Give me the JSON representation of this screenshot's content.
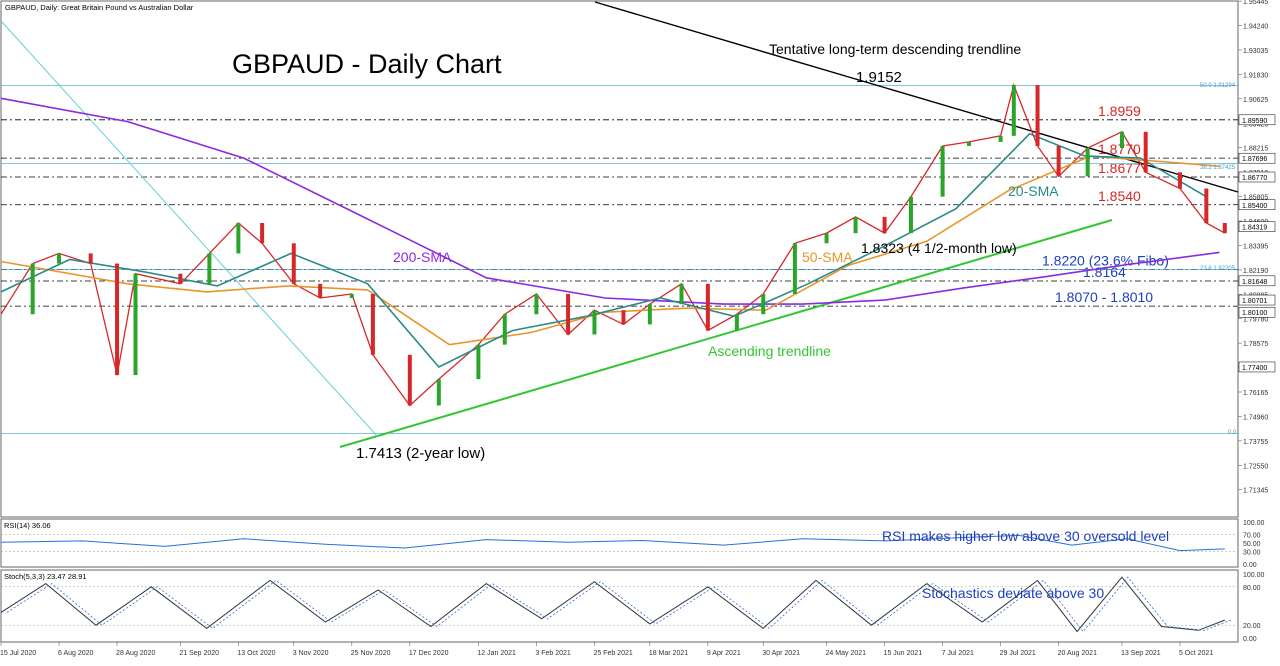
{
  "header": {
    "symbol_caption": "GBPAUD, Daily:  Great Britain Pound vs Australian Dollar",
    "title": "GBPAUD - Daily Chart"
  },
  "annotations": {
    "trendline_desc": "Tentative long-term descending trendline",
    "high": "1.9152",
    "low_2y": "1.7413 (2-year low)",
    "low_4m": "1.8323 (4 1/2-month low)",
    "sma200": "200-SMA",
    "sma50": "50-SMA",
    "sma20": "20-SMA",
    "ascending": "Ascending trendline",
    "rsi_note": "RSI makes higher low above 30 oversold level",
    "stoch_note": "Stochastics deviate above 30"
  },
  "levels": [
    {
      "value": 1.8959,
      "label": "1.8959",
      "color": "#d62828"
    },
    {
      "value": 1.877,
      "label": "1.8770",
      "color": "#d62828"
    },
    {
      "value": 1.8677,
      "label": "1.8677",
      "color": "#d62828"
    },
    {
      "value": 1.854,
      "label": "1.8540",
      "color": "#d62828"
    },
    {
      "value": 1.822,
      "label": "1.8220 (23.6% Fibo)",
      "color": "#1f3fbf"
    },
    {
      "value": 1.8164,
      "label": "1.8164",
      "color": "#1f3fbf"
    },
    {
      "value": 1.804,
      "label": "1.8070 - 1.8010",
      "color": "#1f3fbf"
    }
  ],
  "fibo_labels": {
    "f50": "50.0 1.91294",
    "f382": "38.2 1.87425",
    "f236": "23.6 1.82205",
    "f0": "0.0"
  },
  "price_tags": [
    "1.89590",
    "1.87696",
    "1.86770",
    "1.85400",
    "1.84319",
    "1.81648",
    "1.80701",
    "1.80100",
    "1.77400"
  ],
  "rsi": {
    "caption": "RSI(14) 36.06",
    "ticks": [
      "100.00",
      "70.00",
      "50.00",
      "30.00",
      "0.00"
    ]
  },
  "stoch": {
    "caption": "Stoch(5,3,3) 23.47 28.91",
    "ticks": [
      "100.00",
      "80.00",
      "20.00",
      "0.00"
    ]
  },
  "chart_data": {
    "type": "line",
    "title": "GBPAUD - Daily Chart",
    "ylim": [
      1.7,
      1.9545
    ],
    "y_ticks": [
      "1.95445",
      "1.94240",
      "1.93035",
      "1.91830",
      "1.90625",
      "1.89420",
      "1.88215",
      "1.87010",
      "1.85805",
      "1.84600",
      "1.83395",
      "1.82190",
      "1.80985",
      "1.79780",
      "1.78575",
      "1.77370",
      "1.76165",
      "1.74960",
      "1.73755",
      "1.72550",
      "1.71345"
    ],
    "x_ticks": [
      "15 Jul 2020",
      "6 Aug 2020",
      "28 Aug 2020",
      "21 Sep 2020",
      "13 Oct 2020",
      "3 Nov 2020",
      "25 Nov 2020",
      "17 Dec 2020",
      "12 Jan 2021",
      "3 Feb 2021",
      "25 Feb 2021",
      "18 Mar 2021",
      "9 Apr 2021",
      "30 Apr 2021",
      "24 May 2021",
      "15 Jun 2021",
      "7 Jul 2021",
      "29 Jul 2021",
      "20 Aug 2021",
      "13 Sep 2021",
      "5 Oct 2021"
    ],
    "x_range": [
      "2020-07-15",
      "2021-10-27"
    ],
    "series": [
      {
        "name": "GBPAUD",
        "color": "#d62828",
        "x": [
          "2020-07-15",
          "2020-07-27",
          "2020-08-06",
          "2020-08-18",
          "2020-08-28",
          "2020-09-04",
          "2020-09-21",
          "2020-10-02",
          "2020-10-13",
          "2020-10-22",
          "2020-11-03",
          "2020-11-13",
          "2020-11-25",
          "2020-12-03",
          "2020-12-17",
          "2020-12-28",
          "2021-01-12",
          "2021-01-22",
          "2021-02-03",
          "2021-02-15",
          "2021-02-25",
          "2021-03-08",
          "2021-03-18",
          "2021-03-30",
          "2021-04-09",
          "2021-04-20",
          "2021-04-30",
          "2021-05-12",
          "2021-05-24",
          "2021-06-04",
          "2021-06-15",
          "2021-06-25",
          "2021-07-07",
          "2021-07-17",
          "2021-07-29",
          "2021-08-03",
          "2021-08-12",
          "2021-08-20",
          "2021-08-31",
          "2021-09-13",
          "2021-09-22",
          "2021-10-05",
          "2021-10-15",
          "2021-10-22"
        ],
        "values": [
          1.8,
          1.825,
          1.83,
          1.825,
          1.77,
          1.82,
          1.815,
          1.83,
          1.845,
          1.835,
          1.815,
          1.808,
          1.81,
          1.78,
          1.755,
          1.768,
          1.785,
          1.8,
          1.81,
          1.79,
          1.802,
          1.795,
          1.805,
          1.815,
          1.792,
          1.8,
          1.81,
          1.835,
          1.84,
          1.848,
          1.84,
          1.858,
          1.883,
          1.885,
          1.888,
          1.913,
          1.883,
          1.868,
          1.882,
          1.89,
          1.87,
          1.862,
          1.845,
          1.84
        ]
      },
      {
        "name": "200-SMA",
        "color": "#8a2be2",
        "x": [
          "2020-07-15",
          "2020-09-01",
          "2020-10-15",
          "2020-12-01",
          "2021-01-15",
          "2021-03-01",
          "2021-04-15",
          "2021-05-15",
          "2021-06-15",
          "2021-07-15",
          "2021-08-15",
          "2021-09-15",
          "2021-10-20"
        ],
        "values": [
          1.9065,
          1.895,
          1.877,
          1.847,
          1.818,
          1.808,
          1.805,
          1.805,
          1.807,
          1.813,
          1.8185,
          1.8245,
          1.8305
        ]
      },
      {
        "name": "50-SMA",
        "color": "#e8962a",
        "x": [
          "2020-07-15",
          "2020-09-01",
          "2020-10-01",
          "2020-11-01",
          "2020-12-01",
          "2021-01-01",
          "2021-02-01",
          "2021-03-01",
          "2021-04-01",
          "2021-05-01",
          "2021-06-01",
          "2021-07-01",
          "2021-08-01",
          "2021-09-01",
          "2021-10-20"
        ],
        "values": [
          1.826,
          1.815,
          1.811,
          1.814,
          1.812,
          1.785,
          1.791,
          1.801,
          1.803,
          1.802,
          1.824,
          1.836,
          1.861,
          1.878,
          1.873
        ]
      },
      {
        "name": "20-SMA",
        "color": "#2a8a8a",
        "x": [
          "2020-07-15",
          "2020-08-10",
          "2020-09-07",
          "2020-10-05",
          "2020-11-02",
          "2020-12-01",
          "2020-12-28",
          "2021-01-25",
          "2021-02-22",
          "2021-03-22",
          "2021-04-19",
          "2021-05-17",
          "2021-06-14",
          "2021-07-12",
          "2021-08-09",
          "2021-08-30",
          "2021-09-20",
          "2021-10-15"
        ],
        "values": [
          1.811,
          1.827,
          1.821,
          1.814,
          1.83,
          1.815,
          1.774,
          1.792,
          1.799,
          1.808,
          1.799,
          1.815,
          1.833,
          1.852,
          1.889,
          1.878,
          1.877,
          1.858
        ]
      },
      {
        "name": "RSI(14)",
        "color": "#2a6fdb",
        "x": [
          "2020-07-15",
          "2020-08-15",
          "2020-09-15",
          "2020-10-15",
          "2020-11-15",
          "2020-12-15",
          "2021-01-15",
          "2021-02-15",
          "2021-03-15",
          "2021-04-15",
          "2021-05-15",
          "2021-06-15",
          "2021-07-15",
          "2021-08-05",
          "2021-08-25",
          "2021-09-15",
          "2021-10-05",
          "2021-10-22"
        ],
        "values": [
          52,
          55,
          42,
          60,
          47,
          38,
          58,
          52,
          56,
          45,
          60,
          55,
          63,
          68,
          45,
          60,
          32,
          36
        ]
      },
      {
        "name": "Stoch(5,3,3)",
        "color": "#2a6fdb",
        "x": [
          "2020-07-15",
          "2020-08-01",
          "2020-08-20",
          "2020-09-10",
          "2020-10-01",
          "2020-10-25",
          "2020-11-15",
          "2020-12-05",
          "2020-12-25",
          "2021-01-15",
          "2021-02-05",
          "2021-02-25",
          "2021-03-18",
          "2021-04-09",
          "2021-04-30",
          "2021-05-20",
          "2021-06-10",
          "2021-07-01",
          "2021-07-22",
          "2021-08-12",
          "2021-08-27",
          "2021-09-13",
          "2021-09-28",
          "2021-10-12",
          "2021-10-22"
        ],
        "values": [
          40,
          85,
          20,
          80,
          15,
          90,
          25,
          75,
          18,
          85,
          30,
          88,
          22,
          80,
          15,
          90,
          20,
          85,
          25,
          90,
          10,
          95,
          18,
          12,
          28
        ]
      }
    ]
  }
}
